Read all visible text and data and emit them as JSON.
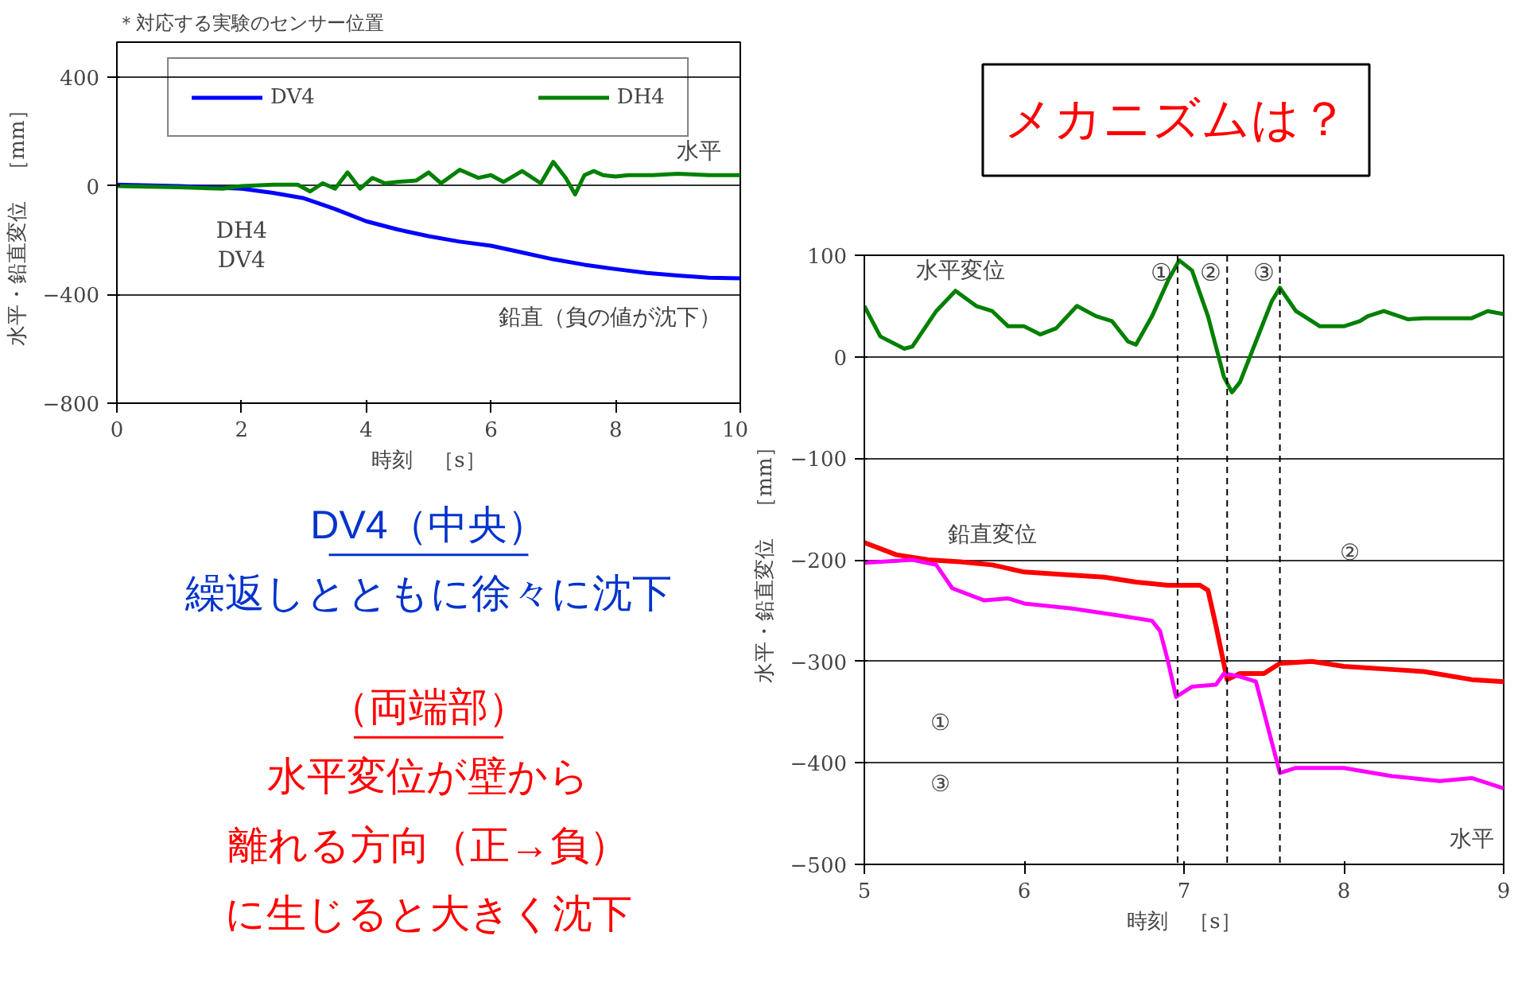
{
  "chart_data": [
    {
      "type": "line",
      "title": "＊対応する実験のセンサー位置",
      "xlabel": "時刻　［s］",
      "ylabel": "水平・鉛直変位　［mm］",
      "x": [
        0,
        1,
        2,
        2.5,
        3,
        3.5,
        4,
        4.5,
        5,
        5.5,
        6,
        6.5,
        7,
        7.5,
        8,
        8.5,
        9,
        9.5,
        10
      ],
      "series": [
        {
          "name": "DV4",
          "color": "#0000ff",
          "values": [
            5,
            0,
            -10,
            -25,
            -45,
            -85,
            -130,
            -160,
            -185,
            -205,
            -220,
            -245,
            -270,
            -290,
            -306,
            -320,
            -330,
            -338,
            -340
          ]
        },
        {
          "name": "DH4",
          "color": "#008000",
          "x": [
            0,
            1,
            1.7,
            2,
            2.5,
            2.9,
            3.1,
            3.3,
            3.5,
            3.7,
            3.9,
            4.1,
            4.3,
            4.5,
            4.8,
            5.0,
            5.2,
            5.5,
            5.8,
            6.0,
            6.2,
            6.5,
            6.8,
            7.0,
            7.2,
            7.35,
            7.5,
            7.65,
            7.8,
            8.0,
            8.2,
            8.6,
            9.0,
            9.5,
            10
          ],
          "values": [
            0,
            -5,
            -10,
            0,
            5,
            5,
            -20,
            10,
            -10,
            50,
            -10,
            30,
            10,
            15,
            20,
            50,
            10,
            60,
            30,
            40,
            15,
            55,
            10,
            89,
            30,
            -31,
            40,
            55,
            40,
            35,
            40,
            40,
            45,
            40,
            40
          ]
        }
      ],
      "xlim": [
        0,
        10
      ],
      "xticks": [
        0,
        2,
        4,
        6,
        8,
        10
      ],
      "ylim": [
        -800,
        530
      ],
      "yticks": [
        -800,
        -400,
        0,
        400
      ],
      "grid": "y",
      "legend": "top",
      "annotations": [
        "水平",
        "鉛直（負の値が沈下）",
        "DH4",
        "DV4"
      ]
    },
    {
      "type": "other",
      "annotations": [
        "メカニズムは？"
      ]
    },
    {
      "type": "other",
      "annotations": [
        "DV4（中央）",
        "繰返しとともに徐々に沈下",
        "（両端部）",
        "水平変位が壁から",
        "離れる方向（正→負）",
        "に生じると大きく沈下"
      ]
    },
    {
      "type": "line",
      "xlabel": "時刻　［s］",
      "ylabel": "水平・鉛直変位　［mm］",
      "series": [
        {
          "color": "#008000",
          "x": [
            5.0,
            5.1,
            5.25,
            5.3,
            5.45,
            5.57,
            5.7,
            5.8,
            5.9,
            6.0,
            6.1,
            6.2,
            6.3,
            6.33,
            6.45,
            6.55,
            6.65,
            6.7,
            6.8,
            6.9,
            6.97,
            7.05,
            7.15,
            7.25,
            7.3,
            7.35,
            7.45,
            7.55,
            7.6,
            7.7,
            7.8,
            7.85,
            8.0,
            8.1,
            8.15,
            8.25,
            8.4,
            8.5,
            8.7,
            8.8,
            8.9,
            9.0
          ],
          "values": [
            50,
            20,
            8,
            10,
            45,
            65,
            50,
            45,
            30,
            30,
            22,
            28,
            45,
            50,
            40,
            35,
            15,
            12,
            40,
            75,
            95,
            85,
            40,
            -20,
            -35,
            -25,
            15,
            55,
            68,
            45,
            35,
            30,
            30,
            35,
            40,
            45,
            37,
            38,
            38,
            38,
            45,
            42
          ]
        },
        {
          "color": "#ff0000",
          "x": [
            5.0,
            5.2,
            5.4,
            5.6,
            5.8,
            6.0,
            6.3,
            6.5,
            6.7,
            6.9,
            7.1,
            7.15,
            7.2,
            7.27,
            7.35,
            7.5,
            7.6,
            7.8,
            8.0,
            8.3,
            8.5,
            8.8,
            9.0
          ],
          "values": [
            -183,
            -195,
            -200,
            -202,
            -205,
            -212,
            -215,
            -217,
            -222,
            -225,
            -225,
            -230,
            -265,
            -318,
            -312,
            -312,
            -302,
            -300,
            -305,
            -308,
            -310,
            -318,
            -320
          ]
        },
        {
          "color": "#ff00ff",
          "x": [
            5.0,
            5.3,
            5.45,
            5.55,
            5.75,
            5.9,
            6.0,
            6.3,
            6.6,
            6.8,
            6.85,
            6.9,
            6.95,
            7.05,
            7.2,
            7.25,
            7.35,
            7.45,
            7.55,
            7.6,
            7.7,
            8.0,
            8.3,
            8.6,
            8.8,
            9.0
          ],
          "values": [
            -203,
            -200,
            -205,
            -228,
            -240,
            -238,
            -243,
            -248,
            -255,
            -260,
            -270,
            -300,
            -335,
            -325,
            -323,
            -312,
            -315,
            -320,
            -380,
            -410,
            -405,
            -405,
            -413,
            -418,
            -415,
            -425
          ]
        }
      ],
      "xlim": [
        5,
        9
      ],
      "xticks": [
        5,
        6,
        7,
        8,
        9
      ],
      "ylim": [
        -500,
        100
      ],
      "yticks": [
        -500,
        -400,
        -300,
        -200,
        -100,
        0,
        100
      ],
      "grid": "y",
      "ref_lines": [
        {
          "axis": "x",
          "value": 6.96,
          "label": "①",
          "line_style": "dashed"
        },
        {
          "axis": "x",
          "value": 7.27,
          "label": "②",
          "line_style": "dashed"
        },
        {
          "axis": "x",
          "value": 7.6,
          "label": "③",
          "line_style": "dashed"
        }
      ],
      "annotations": [
        "水平変位",
        "鉛直変位",
        "①",
        "③",
        "②",
        "水平"
      ]
    }
  ]
}
